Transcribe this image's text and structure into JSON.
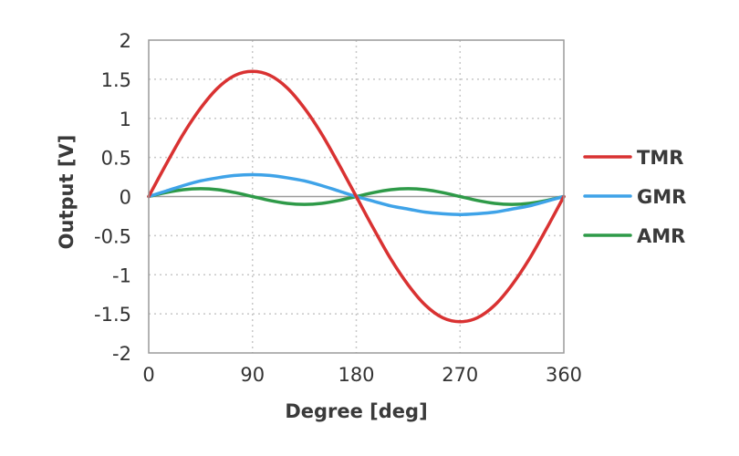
{
  "chart_data": {
    "type": "line",
    "title": "",
    "xlabel": "Degree [deg]",
    "ylabel": "Output [V]",
    "xlim": [
      0,
      360
    ],
    "ylim": [
      -2,
      2
    ],
    "xticks": [
      0,
      90,
      180,
      270,
      360
    ],
    "yticks": [
      2,
      1.5,
      1,
      0.5,
      0,
      -0.5,
      -1,
      -1.5,
      -2
    ],
    "ytick_labels": [
      "2",
      "1.5",
      "1",
      "0.5",
      "0",
      "-0.5",
      "-1",
      "-1.5",
      "-2"
    ],
    "grid": true,
    "legend_position": "right",
    "x": [
      0,
      15,
      30,
      45,
      60,
      75,
      90,
      105,
      120,
      135,
      150,
      165,
      180,
      195,
      210,
      225,
      240,
      255,
      270,
      285,
      300,
      315,
      330,
      345,
      360
    ],
    "series": [
      {
        "name": "TMR",
        "color": "#d93232",
        "values": [
          0,
          0.41,
          0.8,
          1.13,
          1.39,
          1.55,
          1.6,
          1.55,
          1.39,
          1.13,
          0.8,
          0.41,
          0,
          -0.41,
          -0.8,
          -1.13,
          -1.39,
          -1.55,
          -1.6,
          -1.55,
          -1.39,
          -1.13,
          -0.8,
          -0.41,
          0
        ]
      },
      {
        "name": "GMR",
        "color": "#3fa3e8",
        "values": [
          0,
          0.07,
          0.14,
          0.2,
          0.24,
          0.27,
          0.28,
          0.27,
          0.24,
          0.2,
          0.14,
          0.07,
          0,
          -0.06,
          -0.12,
          -0.16,
          -0.2,
          -0.22,
          -0.23,
          -0.22,
          -0.2,
          -0.16,
          -0.12,
          -0.06,
          0
        ]
      },
      {
        "name": "AMR",
        "color": "#2e9a48",
        "values": [
          0,
          0.05,
          0.087,
          0.1,
          0.087,
          0.05,
          0,
          -0.05,
          -0.087,
          -0.1,
          -0.087,
          -0.05,
          0,
          0.05,
          0.087,
          0.1,
          0.087,
          0.05,
          0,
          -0.05,
          -0.087,
          -0.1,
          -0.087,
          -0.05,
          0
        ]
      }
    ]
  },
  "legend": {
    "items": [
      {
        "label": "TMR",
        "color": "#d93232"
      },
      {
        "label": "GMR",
        "color": "#3fa3e8"
      },
      {
        "label": "AMR",
        "color": "#2e9a48"
      }
    ]
  },
  "colors": {
    "grid": "#c8c8c8",
    "frame": "#9a9a9a",
    "zero_line": "#9a9a9a"
  }
}
